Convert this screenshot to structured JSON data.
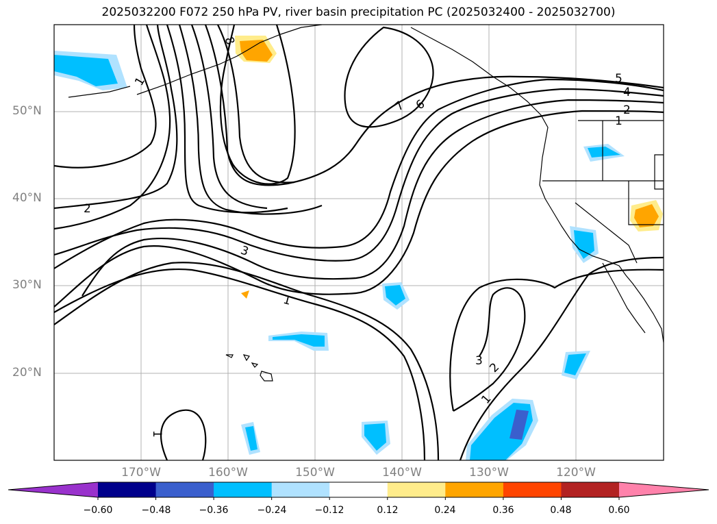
{
  "title": "2025032200 F072 250 hPa PV, river basin precipitation PC (2025032400 - 2025032700)",
  "lat_labels": [
    "50°N",
    "40°N",
    "30°N",
    "20°N"
  ],
  "lon_labels": [
    "170°W",
    "160°W",
    "150°W",
    "140°W",
    "130°W",
    "120°W"
  ],
  "contour_labels": [
    "8",
    "7",
    "6",
    "5",
    "4",
    "2",
    "1",
    "1",
    "2",
    "3",
    "1",
    "3",
    "2",
    "1",
    "1"
  ],
  "colorbar": {
    "ticks": [
      "−0.60",
      "−0.48",
      "−0.36",
      "−0.24",
      "−0.12",
      "0.12",
      "0.24",
      "0.36",
      "0.48",
      "0.60"
    ],
    "colors": [
      "#9932CC",
      "#00008B",
      "#3A5FCD",
      "#00BFFF",
      "#B0E2FF",
      "#FFFFFF",
      "#FFEC8B",
      "#FFA500",
      "#FF4500",
      "#B22222",
      "#FF82AB"
    ]
  }
}
